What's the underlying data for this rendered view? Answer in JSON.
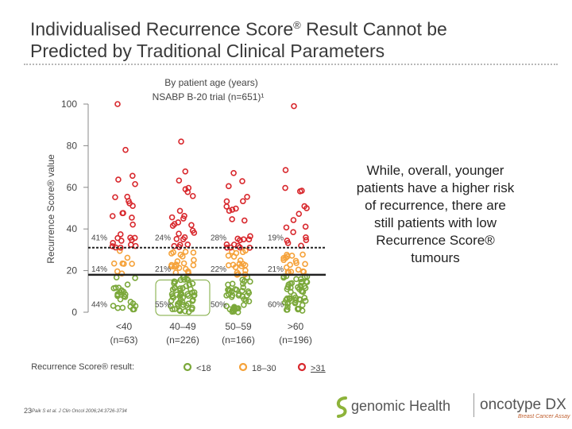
{
  "slide": {
    "title_line1": "Individualised Recurrence Score",
    "title_reg": "®",
    "title_line1_end": " Result Cannot be",
    "title_line2": "Predicted by Traditional Clinical Parameters",
    "side_note": "While, overall, younger patients have a higher risk of recurrence, there are still patients with low Recurrence Score® tumours",
    "slide_number": "23",
    "footnote": "¹Paik S et al. J Clin Oncol 2006;24:3726-3734",
    "logo_main": "genomic Health",
    "logo_second": "oncotype DX",
    "logo_tagline": "Breast Cancer Assay"
  },
  "chart_data": {
    "type": "scatter",
    "title_line1": "By patient age (years)",
    "title_line2": "NSABP B-20 trial (n=651)¹",
    "ylabel": "Recurrence Score® value",
    "ylim": [
      0,
      100
    ],
    "yticks": [
      0,
      20,
      40,
      60,
      80,
      100
    ],
    "thresholds": [
      18,
      31
    ],
    "categories": [
      {
        "name": "<40",
        "n": "(n=63)",
        "pct_high": "41%",
        "pct_mid": "14%",
        "pct_low": "44%"
      },
      {
        "name": "40–49",
        "n": "(n=226)",
        "pct_high": "24%",
        "pct_mid": "21%",
        "pct_low": "55%"
      },
      {
        "name": "50–59",
        "n": "(n=166)",
        "pct_high": "28%",
        "pct_mid": "22%",
        "pct_low": "50%"
      },
      {
        "name": ">60",
        "n": "(n=196)",
        "pct_high": "19%",
        "pct_mid": "21%",
        "pct_low": "60%"
      }
    ],
    "highlight_box_category": "40–49",
    "legend": {
      "title": "Recurrence Score® result:",
      "items": [
        {
          "label": "<18",
          "color": "#7ba83a"
        },
        {
          "label": "18–30",
          "color": "#f5a23a"
        },
        {
          "label": ">31",
          "color": "#d8282d"
        }
      ]
    },
    "colors": {
      "low": "#7ba83a",
      "mid": "#f5a23a",
      "high": "#d8282d",
      "box": "#7ba83a"
    }
  }
}
